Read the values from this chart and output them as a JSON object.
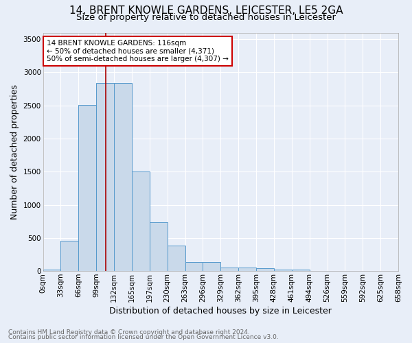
{
  "title": "14, BRENT KNOWLE GARDENS, LEICESTER, LE5 2GA",
  "subtitle": "Size of property relative to detached houses in Leicester",
  "xlabel": "Distribution of detached houses by size in Leicester",
  "ylabel": "Number of detached properties",
  "footnote1": "Contains HM Land Registry data © Crown copyright and database right 2024.",
  "footnote2": "Contains public sector information licensed under the Open Government Licence v3.0.",
  "bin_labels": [
    "0sqm",
    "33sqm",
    "66sqm",
    "99sqm",
    "132sqm",
    "165sqm",
    "197sqm",
    "230sqm",
    "263sqm",
    "296sqm",
    "329sqm",
    "362sqm",
    "395sqm",
    "428sqm",
    "461sqm",
    "494sqm",
    "526sqm",
    "559sqm",
    "592sqm",
    "625sqm",
    "658sqm"
  ],
  "bar_values": [
    25,
    460,
    2510,
    2840,
    2840,
    1500,
    740,
    380,
    140,
    140,
    58,
    52,
    48,
    25,
    18,
    0,
    0,
    0,
    0,
    0
  ],
  "bar_color": "#c9d9ea",
  "bar_edge_color": "#5599cc",
  "vline_color": "#aa0000",
  "annotation_text": "14 BRENT KNOWLE GARDENS: 116sqm\n← 50% of detached houses are smaller (4,371)\n50% of semi-detached houses are larger (4,307) →",
  "annotation_box_color": "#ffffff",
  "annotation_box_edge": "#cc0000",
  "ylim": [
    0,
    3600
  ],
  "yticks": [
    0,
    500,
    1000,
    1500,
    2000,
    2500,
    3000,
    3500
  ],
  "bg_color": "#e8eef8",
  "plot_bg_color": "#e8eef8",
  "grid_color": "#ffffff",
  "title_fontsize": 11,
  "subtitle_fontsize": 9.5,
  "axis_label_fontsize": 9,
  "tick_fontsize": 7.5,
  "footnote_fontsize": 6.5,
  "annotation_fontsize": 7.5
}
